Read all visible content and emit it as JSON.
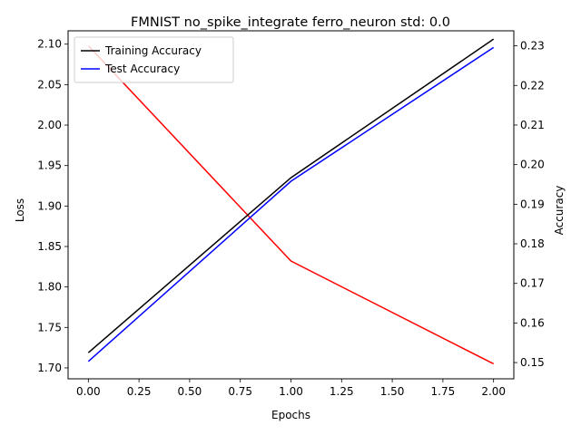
{
  "chart_data": {
    "type": "line",
    "title": "FMNIST no_spike_integrate ferro_neuron std: 0.0",
    "xlabel": "Epochs",
    "ylabel_left": "Loss",
    "ylabel_right": "Accuracy",
    "x": [
      0,
      1,
      2
    ],
    "xlim": [
      -0.1,
      2.1
    ],
    "xticks": [
      "0.00",
      "0.25",
      "0.50",
      "0.75",
      "1.00",
      "1.25",
      "1.50",
      "1.75",
      "2.00"
    ],
    "ylim_left": [
      1.6865,
      2.1165
    ],
    "yticks_left": [
      "1.70",
      "1.75",
      "1.80",
      "1.85",
      "1.90",
      "1.95",
      "2.00",
      "2.05",
      "2.10"
    ],
    "ylim_right": [
      0.1459,
      0.2338
    ],
    "yticks_right": [
      "0.15",
      "0.16",
      "0.17",
      "0.18",
      "0.19",
      "0.20",
      "0.21",
      "0.22",
      "0.23"
    ],
    "grid": false,
    "legend_position": "top-left",
    "series": [
      {
        "name": "",
        "axis": "left",
        "color": "#ff0000",
        "values": [
          2.098,
          1.832,
          1.705
        ]
      },
      {
        "name": "Training Accuracy",
        "axis": "right",
        "color": "#000000",
        "values": [
          0.1525,
          0.1967,
          0.2317
        ]
      },
      {
        "name": "Test Accuracy",
        "axis": "right",
        "color": "#0000ff",
        "values": [
          0.1503,
          0.1958,
          0.2296
        ]
      }
    ]
  }
}
